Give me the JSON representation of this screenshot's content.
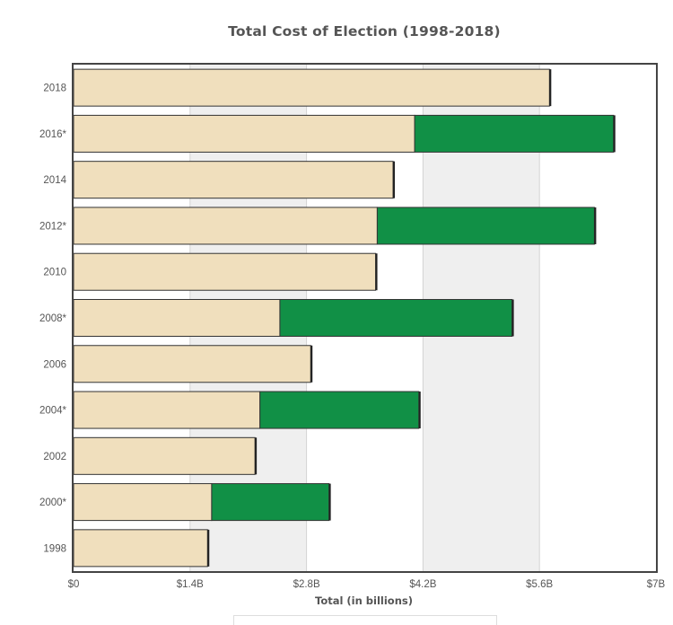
{
  "chart_data": {
    "type": "bar",
    "orientation": "horizontal",
    "stacked": true,
    "title": "Total Cost of Election (1998-2018)",
    "xlabel": "Total (in billions)",
    "ylabel": "",
    "xlim": [
      0,
      7
    ],
    "x_tick_values": [
      0,
      1.4,
      2.8,
      4.2,
      5.6,
      7
    ],
    "x_tick_labels": [
      "$0",
      "$1.4B",
      "$2.8B",
      "$4.2B",
      "$5.6B",
      "$7B"
    ],
    "categories": [
      "2018",
      "2016*",
      "2014",
      "2012*",
      "2010",
      "2008*",
      "2006",
      "2004*",
      "2002",
      "2000*",
      "1998"
    ],
    "series": [
      {
        "color": "#f0dfbd",
        "values": [
          5.72,
          4.1,
          3.84,
          3.65,
          3.63,
          2.48,
          2.85,
          2.24,
          2.18,
          1.66,
          1.61
        ]
      },
      {
        "color": "#119046",
        "values": [
          0,
          2.39,
          0,
          2.61,
          0,
          2.79,
          0,
          1.91,
          0,
          1.41,
          0
        ]
      }
    ],
    "grid": "vertical alternating bands",
    "band_color": "#efefef",
    "border_color": "#444444"
  }
}
